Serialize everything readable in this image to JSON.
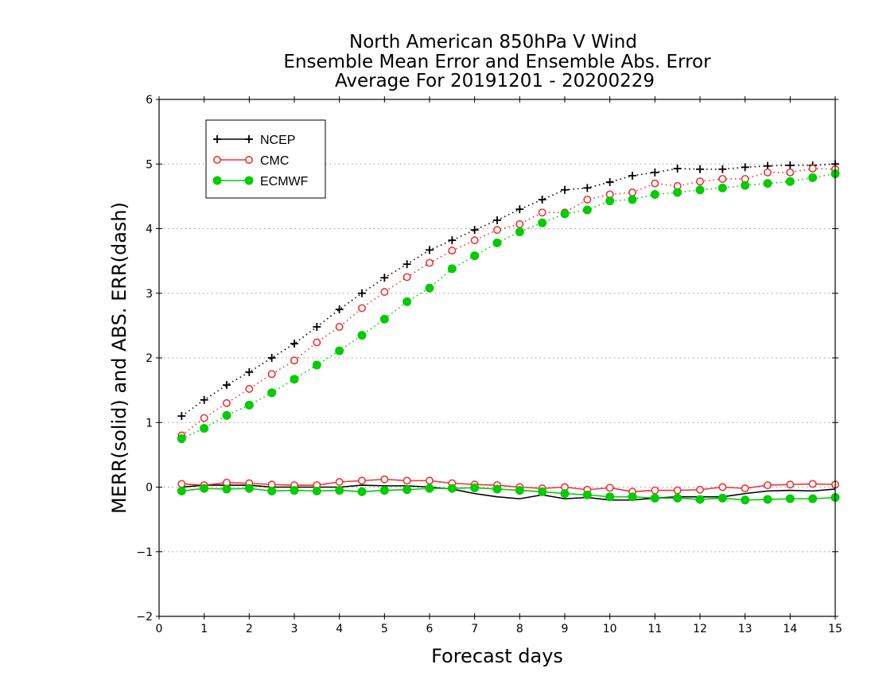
{
  "chart_data": {
    "type": "line",
    "title_lines": [
      "North American 850hPa V Wind",
      "Ensemble Mean Error and Ensemble Abs. Error",
      "Average For 20191201 - 20200229"
    ],
    "xlabel": "Forecast days",
    "ylabel": "MERR(solid) and ABS. ERR(dash)",
    "xlim": [
      0,
      15
    ],
    "ylim": [
      -2,
      6
    ],
    "xticks": [
      "0",
      "1",
      "2",
      "3",
      "4",
      "5",
      "6",
      "7",
      "8",
      "9",
      "10",
      "11",
      "12",
      "13",
      "14",
      "15"
    ],
    "yticks": [
      "−2",
      "−1",
      "0",
      "1",
      "2",
      "3",
      "4",
      "5",
      "6"
    ],
    "grid": "horizontal dotted",
    "legend_position": "top-left",
    "x": [
      0.5,
      1,
      1.5,
      2,
      2.5,
      3,
      3.5,
      4,
      4.5,
      5,
      5.5,
      6,
      6.5,
      7,
      7.5,
      8,
      8.5,
      9,
      9.5,
      10,
      10.5,
      11,
      11.5,
      12,
      12.5,
      13,
      13.5,
      14,
      14.5,
      15
    ],
    "series": [
      {
        "name": "NCEP",
        "color": "#000000",
        "marker": "plus",
        "abs_err": [
          1.1,
          1.35,
          1.58,
          1.78,
          2.0,
          2.22,
          2.48,
          2.75,
          3.0,
          3.24,
          3.45,
          3.67,
          3.82,
          3.98,
          4.13,
          4.3,
          4.45,
          4.6,
          4.63,
          4.72,
          4.82,
          4.87,
          4.93,
          4.92,
          4.92,
          4.95,
          4.97,
          4.98,
          4.98,
          5.0
        ],
        "mean_err": [
          0.0,
          0.03,
          0.03,
          0.03,
          0.0,
          0.0,
          0.0,
          0.0,
          0.03,
          0.02,
          0.02,
          0.0,
          -0.03,
          -0.1,
          -0.15,
          -0.18,
          -0.12,
          -0.18,
          -0.16,
          -0.2,
          -0.2,
          -0.17,
          -0.15,
          -0.15,
          -0.15,
          -0.1,
          -0.06,
          -0.05,
          -0.06,
          -0.03
        ]
      },
      {
        "name": "CMC",
        "color": "#ee3333",
        "marker": "open-circle",
        "abs_err": [
          0.8,
          1.07,
          1.3,
          1.52,
          1.75,
          1.96,
          2.24,
          2.48,
          2.77,
          3.02,
          3.25,
          3.47,
          3.66,
          3.82,
          3.98,
          4.07,
          4.25,
          4.25,
          4.45,
          4.53,
          4.56,
          4.7,
          4.66,
          4.73,
          4.77,
          4.77,
          4.87,
          4.87,
          4.93,
          4.92
        ],
        "mean_err": [
          0.05,
          0.03,
          0.07,
          0.06,
          0.04,
          0.03,
          0.03,
          0.08,
          0.1,
          0.12,
          0.1,
          0.1,
          0.06,
          0.04,
          0.03,
          0.0,
          -0.02,
          0.0,
          -0.04,
          -0.01,
          -0.07,
          -0.05,
          -0.05,
          -0.04,
          0.0,
          -0.02,
          0.03,
          0.04,
          0.05,
          0.04
        ]
      },
      {
        "name": "ECMWF",
        "color": "#00cc00",
        "marker": "filled-circle",
        "abs_err": [
          0.75,
          0.91,
          1.11,
          1.27,
          1.46,
          1.67,
          1.89,
          2.11,
          2.35,
          2.6,
          2.87,
          3.08,
          3.38,
          3.58,
          3.78,
          3.95,
          4.09,
          4.23,
          4.29,
          4.43,
          4.45,
          4.53,
          4.56,
          4.6,
          4.63,
          4.67,
          4.7,
          4.73,
          4.79,
          4.85
        ],
        "mean_err": [
          -0.06,
          -0.02,
          -0.03,
          -0.02,
          -0.06,
          -0.05,
          -0.06,
          -0.05,
          -0.07,
          -0.05,
          -0.04,
          -0.02,
          -0.02,
          -0.01,
          -0.03,
          -0.05,
          -0.07,
          -0.1,
          -0.12,
          -0.15,
          -0.15,
          -0.17,
          -0.17,
          -0.19,
          -0.17,
          -0.2,
          -0.19,
          -0.18,
          -0.18,
          -0.16
        ]
      }
    ]
  }
}
